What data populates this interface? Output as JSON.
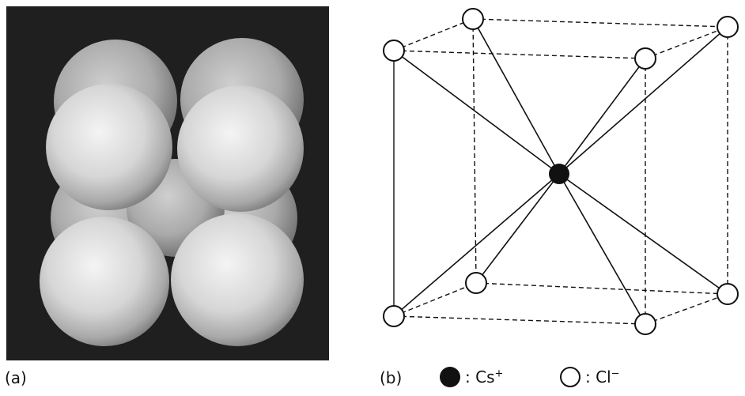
{
  "panel_a": {
    "label": "(a)"
  },
  "panel_b": {
    "label": "(b)"
  },
  "legend": {
    "cation": {
      "sep": ":",
      "symbol": "Cs",
      "charge": "+",
      "icon": "filled-circle-icon"
    },
    "anion": {
      "sep": ":",
      "symbol": "Cl",
      "charge": "−",
      "icon": "open-circle-icon"
    }
  }
}
